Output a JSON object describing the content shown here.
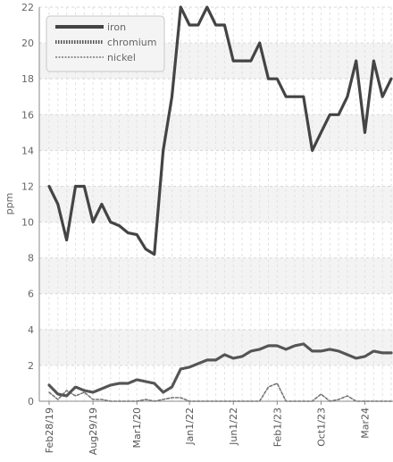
{
  "chart_data": {
    "type": "line",
    "title": "",
    "xlabel": "",
    "ylabel": "ppm",
    "ylim": [
      0,
      22
    ],
    "y_ticks": [
      0,
      2,
      4,
      6,
      8,
      10,
      12,
      14,
      16,
      18,
      20,
      22
    ],
    "x_tick_labels": [
      "Feb28/19",
      "Aug29/19",
      "Mar1/20",
      "Jan1/22",
      "Jun1/22",
      "Feb1/23",
      "Oct1/23",
      "Mar24"
    ],
    "grid": true,
    "legend_position": "top-left",
    "series": [
      {
        "name": "iron",
        "color": "#444444",
        "style": "solid",
        "values": [
          12,
          11,
          9,
          12,
          12,
          10,
          11,
          10,
          9.8,
          9.4,
          9.3,
          8.5,
          8.2,
          14,
          17,
          22,
          21,
          21,
          22,
          21,
          21,
          19,
          19,
          19,
          20,
          18,
          18,
          17,
          17,
          17,
          14,
          15,
          16,
          16,
          17,
          19,
          15,
          19,
          17,
          18
        ]
      },
      {
        "name": "chromium",
        "color": "#555555",
        "style": "dotted",
        "values": [
          0.9,
          0.4,
          0.3,
          0.8,
          0.6,
          0.5,
          0.7,
          0.9,
          1.0,
          1.0,
          1.2,
          1.1,
          1.0,
          0.5,
          0.8,
          1.8,
          1.9,
          2.1,
          2.3,
          2.3,
          2.6,
          2.4,
          2.5,
          2.8,
          2.9,
          3.1,
          3.1,
          2.9,
          3.1,
          3.2,
          2.8,
          2.8,
          2.9,
          2.8,
          2.6,
          2.4,
          2.5,
          2.8,
          2.7,
          2.7
        ]
      },
      {
        "name": "nickel",
        "color": "#777777",
        "style": "dashed",
        "values": [
          0.5,
          0.1,
          0.6,
          0.3,
          0.5,
          0.1,
          0.1,
          0,
          0,
          0,
          0,
          0.1,
          0,
          0.1,
          0.2,
          0.2,
          0,
          0,
          0,
          0,
          0,
          0,
          0,
          0,
          0,
          0.8,
          1.0,
          0,
          0,
          0,
          0,
          0.4,
          0,
          0.1,
          0.3,
          0,
          0,
          0,
          0,
          0
        ]
      }
    ]
  }
}
